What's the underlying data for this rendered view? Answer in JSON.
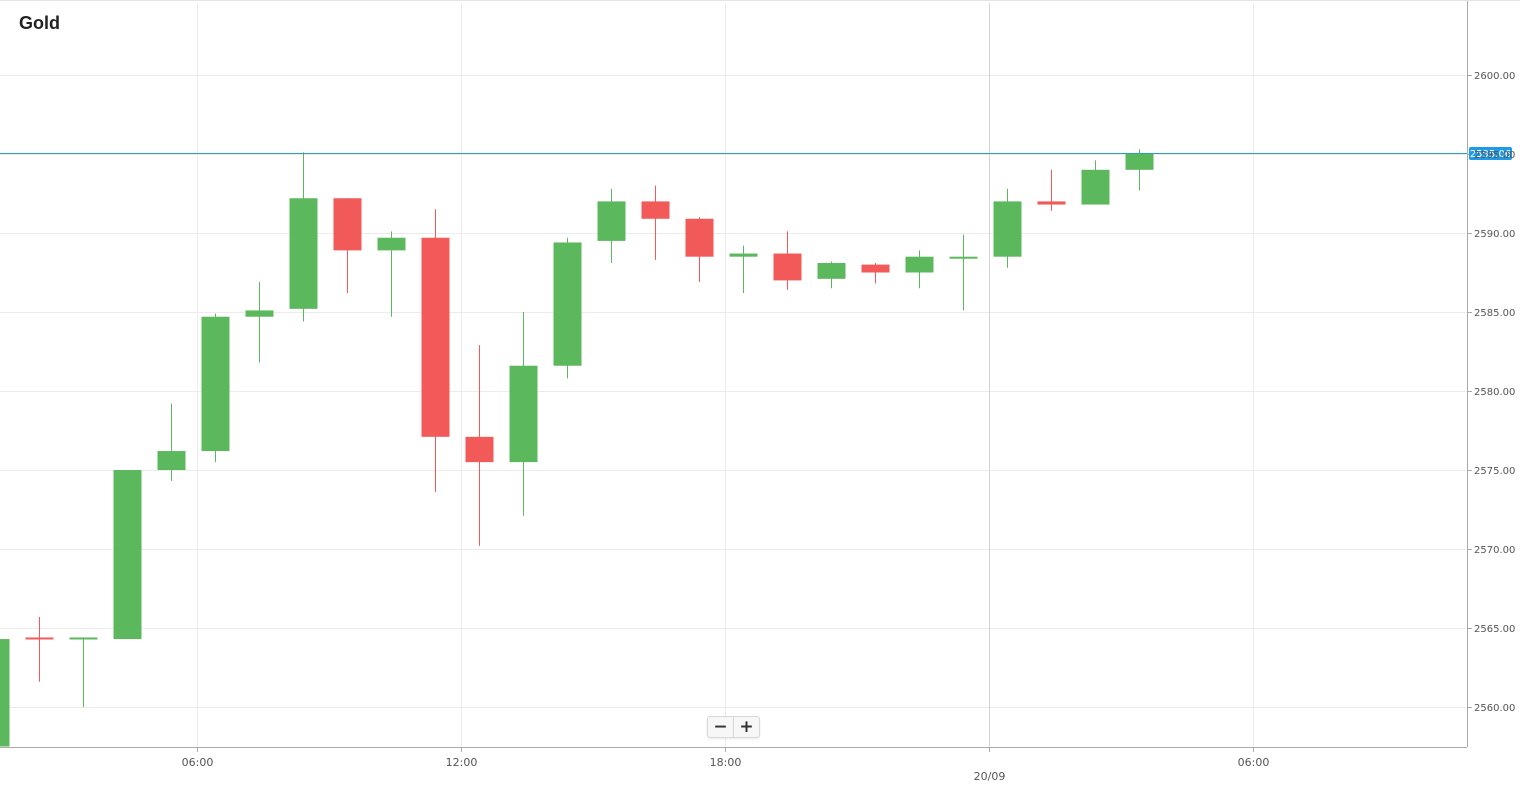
{
  "colors": {
    "up": "#5cb85c",
    "down": "#f25a5a",
    "grid": "#ececec",
    "axis": "#aaaaaa",
    "price_line": "#2aa3b8",
    "price_tag": "#1e9be8"
  },
  "zoom": {
    "out_icon": "minus-icon",
    "out_label": "−",
    "in_icon": "plus-icon",
    "in_label": "+"
  },
  "chart_data": {
    "type": "candlestick",
    "title": "Gold",
    "ylim": [
      2557.5,
      2604.5
    ],
    "yticks": [
      "2600.00",
      "2595.00",
      "2590.00",
      "2585.00",
      "2580.00",
      "2575.00",
      "2570.00",
      "2565.00",
      "2560.00"
    ],
    "current_price": "2595.06",
    "grid": true,
    "x_range_hours": [
      1.0,
      27.8
    ],
    "xticks": [
      {
        "label": "06:00",
        "hour": 6
      },
      {
        "label": "12:00",
        "hour": 12
      },
      {
        "label": "18:00",
        "hour": 18
      },
      {
        "label": "20/09",
        "hour": 24
      },
      {
        "label": "06:00",
        "hour": 30
      }
    ],
    "x_day_label": "20/09",
    "candles": [
      {
        "hour": 1.4,
        "open": 2557.5,
        "high": 2567.1,
        "low": 2557.5,
        "close": 2564.3
      },
      {
        "hour": 2.4,
        "open": 2564.4,
        "high": 2565.7,
        "low": 2561.6,
        "close": 2564.3
      },
      {
        "hour": 3.4,
        "open": 2564.4,
        "high": 2564.4,
        "low": 2560.0,
        "close": 2564.4
      },
      {
        "hour": 4.4,
        "open": 2564.3,
        "high": 2575.0,
        "low": 2564.3,
        "close": 2575.0
      },
      {
        "hour": 5.4,
        "open": 2575.0,
        "high": 2579.2,
        "low": 2574.3,
        "close": 2576.2
      },
      {
        "hour": 6.4,
        "open": 2576.2,
        "high": 2584.9,
        "low": 2575.5,
        "close": 2584.7
      },
      {
        "hour": 7.4,
        "open": 2584.7,
        "high": 2586.9,
        "low": 2581.8,
        "close": 2585.1
      },
      {
        "hour": 8.4,
        "open": 2585.2,
        "high": 2595.1,
        "low": 2584.4,
        "close": 2592.2
      },
      {
        "hour": 9.4,
        "open": 2592.2,
        "high": 2592.2,
        "low": 2586.2,
        "close": 2588.9
      },
      {
        "hour": 10.4,
        "open": 2588.9,
        "high": 2590.1,
        "low": 2584.7,
        "close": 2589.7
      },
      {
        "hour": 11.4,
        "open": 2589.7,
        "high": 2591.5,
        "low": 2573.6,
        "close": 2577.1
      },
      {
        "hour": 12.4,
        "open": 2577.1,
        "high": 2582.9,
        "low": 2570.2,
        "close": 2575.5
      },
      {
        "hour": 13.4,
        "open": 2575.5,
        "high": 2585.0,
        "low": 2572.1,
        "close": 2581.6
      },
      {
        "hour": 14.4,
        "open": 2581.6,
        "high": 2589.7,
        "low": 2580.8,
        "close": 2589.4
      },
      {
        "hour": 15.4,
        "open": 2589.5,
        "high": 2592.8,
        "low": 2588.1,
        "close": 2592.0
      },
      {
        "hour": 16.4,
        "open": 2592.0,
        "high": 2593.0,
        "low": 2588.3,
        "close": 2590.9
      },
      {
        "hour": 17.4,
        "open": 2590.9,
        "high": 2591.0,
        "low": 2586.9,
        "close": 2588.5
      },
      {
        "hour": 18.4,
        "open": 2588.5,
        "high": 2589.2,
        "low": 2586.2,
        "close": 2588.7
      },
      {
        "hour": 19.4,
        "open": 2588.7,
        "high": 2590.1,
        "low": 2586.4,
        "close": 2587.0
      },
      {
        "hour": 20.4,
        "open": 2587.1,
        "high": 2588.2,
        "low": 2586.5,
        "close": 2588.1
      },
      {
        "hour": 21.4,
        "open": 2588.0,
        "high": 2588.1,
        "low": 2586.8,
        "close": 2587.5
      },
      {
        "hour": 22.4,
        "open": 2587.5,
        "high": 2588.9,
        "low": 2586.5,
        "close": 2588.5
      },
      {
        "hour": 23.4,
        "open": 2588.5,
        "high": 2589.9,
        "low": 2585.1,
        "close": 2588.5
      },
      {
        "hour": 24.4,
        "open": 2588.5,
        "high": 2592.8,
        "low": 2587.8,
        "close": 2592.0
      },
      {
        "hour": 25.4,
        "open": 2592.0,
        "high": 2594.0,
        "low": 2591.4,
        "close": 2591.8
      },
      {
        "hour": 26.4,
        "open": 2591.8,
        "high": 2594.6,
        "low": 2591.8,
        "close": 2594.0
      },
      {
        "hour": 27.4,
        "open": 2594.0,
        "high": 2595.3,
        "low": 2592.7,
        "close": 2595.06
      }
    ]
  }
}
